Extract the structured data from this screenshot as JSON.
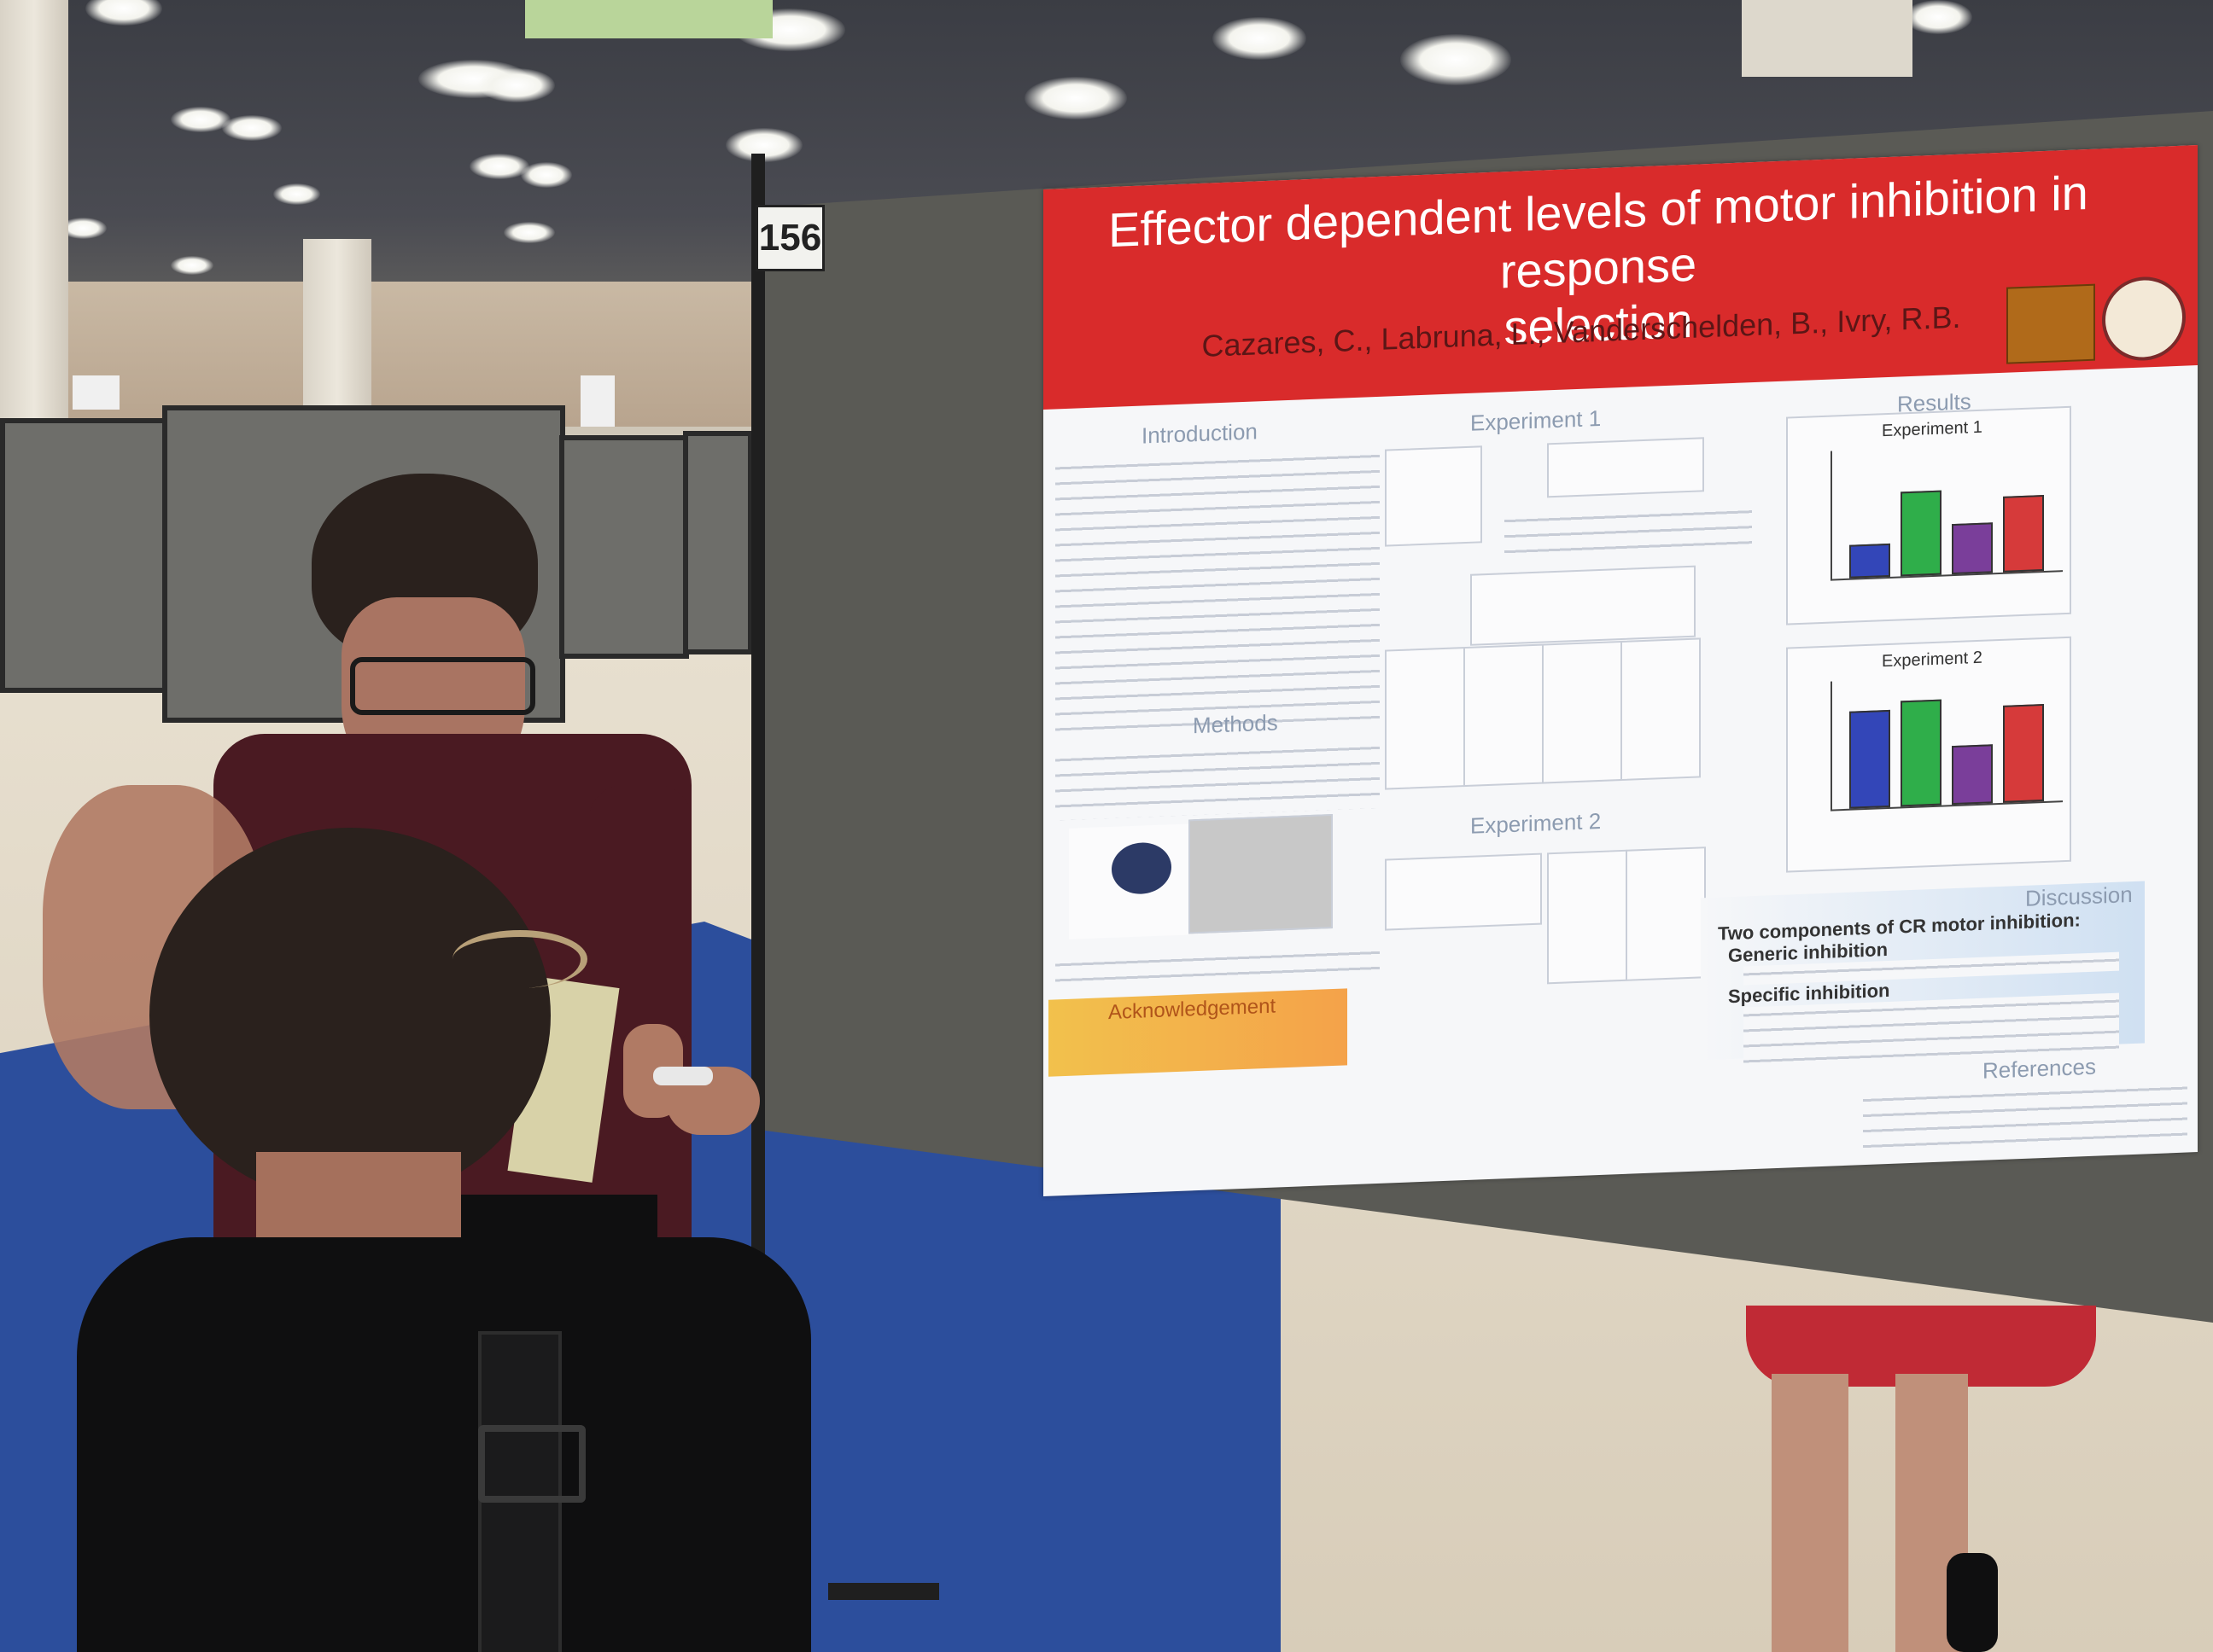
{
  "scene": {
    "board_number": "156"
  },
  "poster": {
    "title_line1": "Effector dependent levels of motor inhibition in response",
    "title_line2": "selection",
    "authors": "Cazares, C., Labruna, L., Vanderschelden, B., Ivry, R.B.",
    "sections": {
      "introduction": "Introduction",
      "experiment1": "Experiment 1",
      "results": "Results",
      "methods": "Methods",
      "experiment2": "Experiment 2",
      "discussion": "Discussion",
      "acknowledgement": "Acknowledgement",
      "references": "References"
    },
    "results_fig1_title": "Experiment 1",
    "results_fig2_title": "Experiment 2",
    "discussion_lines": [
      "Two components of CR motor inhibition:",
      "Generic inhibition",
      "Specific inhibition"
    ]
  },
  "colors": {
    "poster_header": "#d92b2b",
    "bar_blue": "#3346b8",
    "bar_green": "#2fae4a",
    "bar_purple": "#7a3e9a",
    "bar_red": "#d63a3a",
    "carpet": "#2c4e9c"
  }
}
